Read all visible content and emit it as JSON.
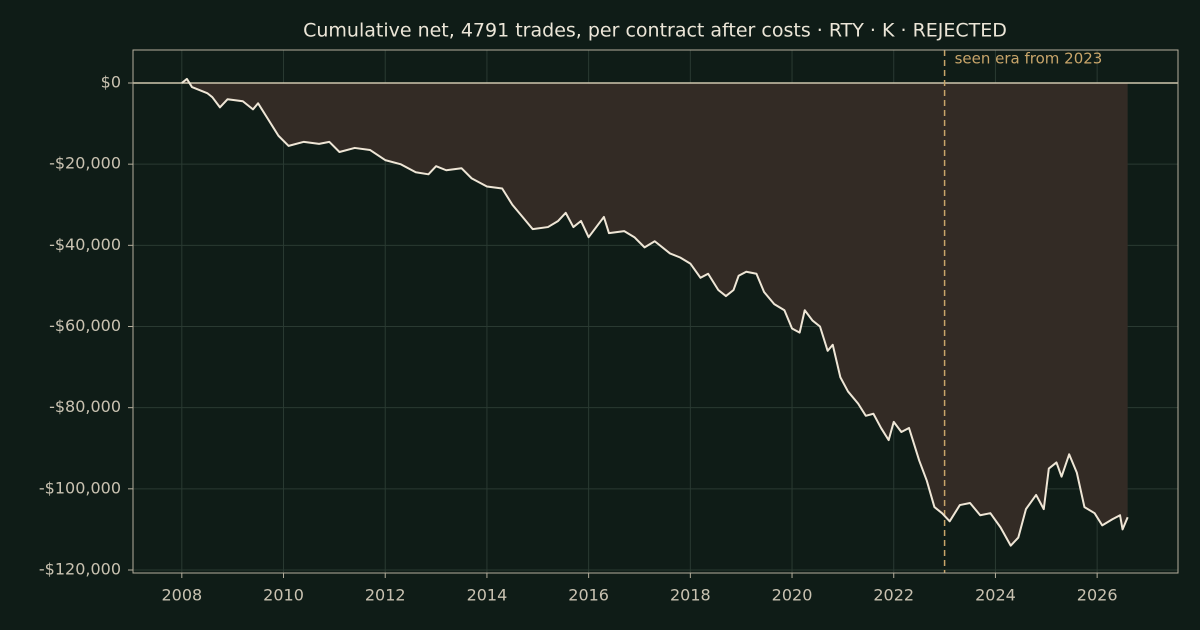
{
  "chart_data": {
    "type": "line",
    "title": "Cumulative net, 4791 trades, per contract after costs  ·  RTY · K · REJECTED",
    "x": [
      2008.0,
      2008.1,
      2008.2,
      2008.5,
      2008.6,
      2008.75,
      2008.9,
      2009.2,
      2009.4,
      2009.5,
      2009.7,
      2009.9,
      2010.1,
      2010.4,
      2010.7,
      2010.9,
      2011.1,
      2011.4,
      2011.7,
      2012.0,
      2012.3,
      2012.6,
      2012.85,
      2013.0,
      2013.2,
      2013.5,
      2013.7,
      2014.0,
      2014.3,
      2014.5,
      2014.7,
      2014.9,
      2015.2,
      2015.4,
      2015.55,
      2015.7,
      2015.85,
      2016.0,
      2016.15,
      2016.3,
      2016.4,
      2016.7,
      2016.9,
      2017.1,
      2017.3,
      2017.6,
      2017.8,
      2018.0,
      2018.2,
      2018.35,
      2018.55,
      2018.7,
      2018.85,
      2018.95,
      2019.1,
      2019.3,
      2019.45,
      2019.65,
      2019.85,
      2020.0,
      2020.15,
      2020.25,
      2020.4,
      2020.55,
      2020.7,
      2020.8,
      2020.95,
      2021.1,
      2021.3,
      2021.45,
      2021.6,
      2021.75,
      2021.9,
      2022.0,
      2022.15,
      2022.3,
      2022.5,
      2022.65,
      2022.8,
      2022.95,
      2023.1,
      2023.3,
      2023.5,
      2023.7,
      2023.9,
      2024.1,
      2024.3,
      2024.45,
      2024.6,
      2024.8,
      2024.95,
      2025.05,
      2025.2,
      2025.3,
      2025.45,
      2025.6,
      2025.75,
      2025.95,
      2026.1,
      2026.3,
      2026.45,
      2026.5,
      2026.6
    ],
    "series": [
      {
        "name": "Cumulative net",
        "color": "#efe6d6",
        "fill": "#332b25",
        "values": [
          0,
          1000,
          -1000,
          -2500,
          -3500,
          -6000,
          -4000,
          -4500,
          -6500,
          -5000,
          -9000,
          -13000,
          -15500,
          -14500,
          -15000,
          -14500,
          -17000,
          -16000,
          -16500,
          -19000,
          -20000,
          -22000,
          -22500,
          -20500,
          -21500,
          -21000,
          -23500,
          -25500,
          -26000,
          -30000,
          -33000,
          -36000,
          -35500,
          -34000,
          -32000,
          -35500,
          -34000,
          -38000,
          -35500,
          -33000,
          -37000,
          -36500,
          -38000,
          -40500,
          -39000,
          -42000,
          -43000,
          -44500,
          -48000,
          -47000,
          -51000,
          -52500,
          -51000,
          -47500,
          -46500,
          -47000,
          -51500,
          -54500,
          -56000,
          -60500,
          -61500,
          -56000,
          -58500,
          -60000,
          -66000,
          -64500,
          -72500,
          -76000,
          -79000,
          -82000,
          -81500,
          -85000,
          -88000,
          -83500,
          -86000,
          -85000,
          -93000,
          -98000,
          -104500,
          -106000,
          -108000,
          -104000,
          -103500,
          -106500,
          -106000,
          -109500,
          -114000,
          -112000,
          -105000,
          -101500,
          -105000,
          -95000,
          -93500,
          -97000,
          -91500,
          -96000,
          -104500,
          -106000,
          -109000,
          -107500,
          -106500,
          -110000,
          -107000
        ]
      }
    ],
    "xlim": [
      2007.04,
      2027.59
    ],
    "xticks": [
      2008,
      2010,
      2012,
      2014,
      2016,
      2018,
      2020,
      2022,
      2024,
      2026
    ],
    "ylim": [
      -120740,
      8130
    ],
    "yticks": [
      {
        "value": 0,
        "label": "$0"
      },
      {
        "value": -20000,
        "label": "-$20,000"
      },
      {
        "value": -40000,
        "label": "-$40,000"
      },
      {
        "value": -60000,
        "label": "-$60,000"
      },
      {
        "value": -80000,
        "label": "-$80,000"
      },
      {
        "value": -100000,
        "label": "-$100,000"
      },
      {
        "value": -120000,
        "label": "-$120,000"
      }
    ],
    "grid": true,
    "vline": {
      "x": 2023,
      "label": "seen era from 2023",
      "color": "#c8a56a"
    }
  }
}
